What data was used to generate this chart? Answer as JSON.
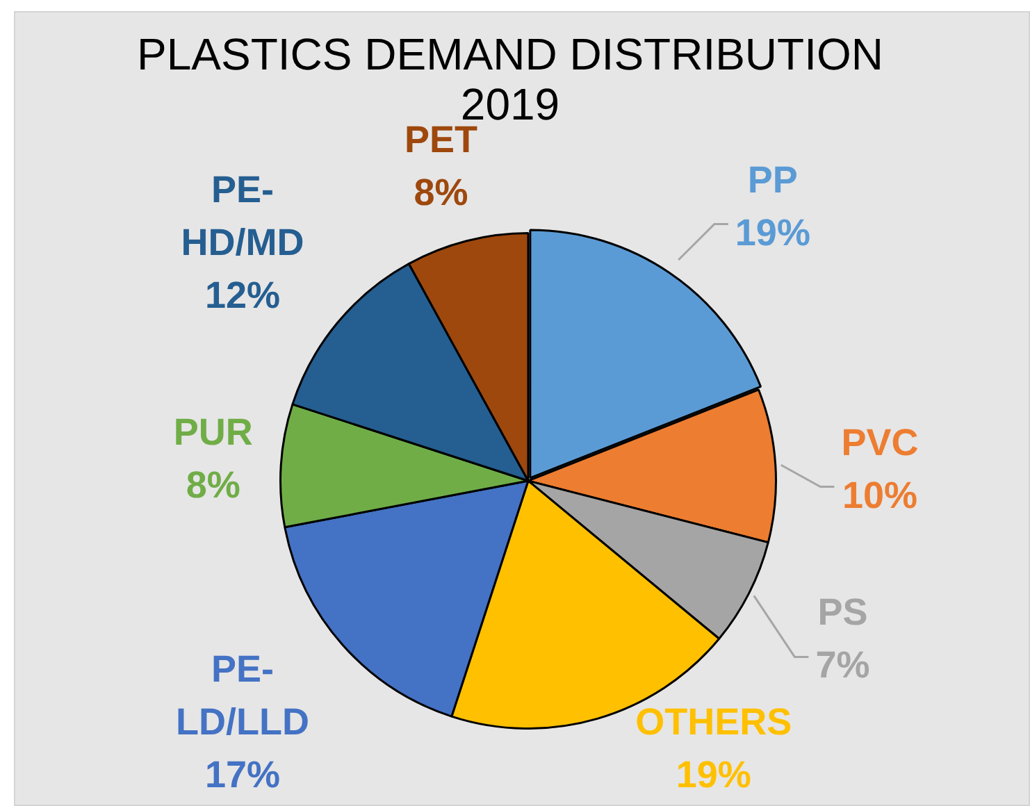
{
  "chart_data": {
    "type": "pie",
    "title": "PLASTICS DEMAND DISTRIBUTION 2019",
    "categories": [
      "PP",
      "PVC",
      "PS",
      "OTHERS",
      "PE-LD/LLD",
      "PUR",
      "PE-HD/MD",
      "PET"
    ],
    "values": [
      19,
      10,
      7,
      19,
      17,
      8,
      12,
      8
    ],
    "colors": [
      "#5b9bd5",
      "#ed7d31",
      "#a5a5a5",
      "#ffc000",
      "#4472c4",
      "#70ad47",
      "#255e91",
      "#9e480e"
    ],
    "value_labels": [
      "19%",
      "10%",
      "7%",
      "19%",
      "17%",
      "8%",
      "12%",
      "8%"
    ]
  }
}
